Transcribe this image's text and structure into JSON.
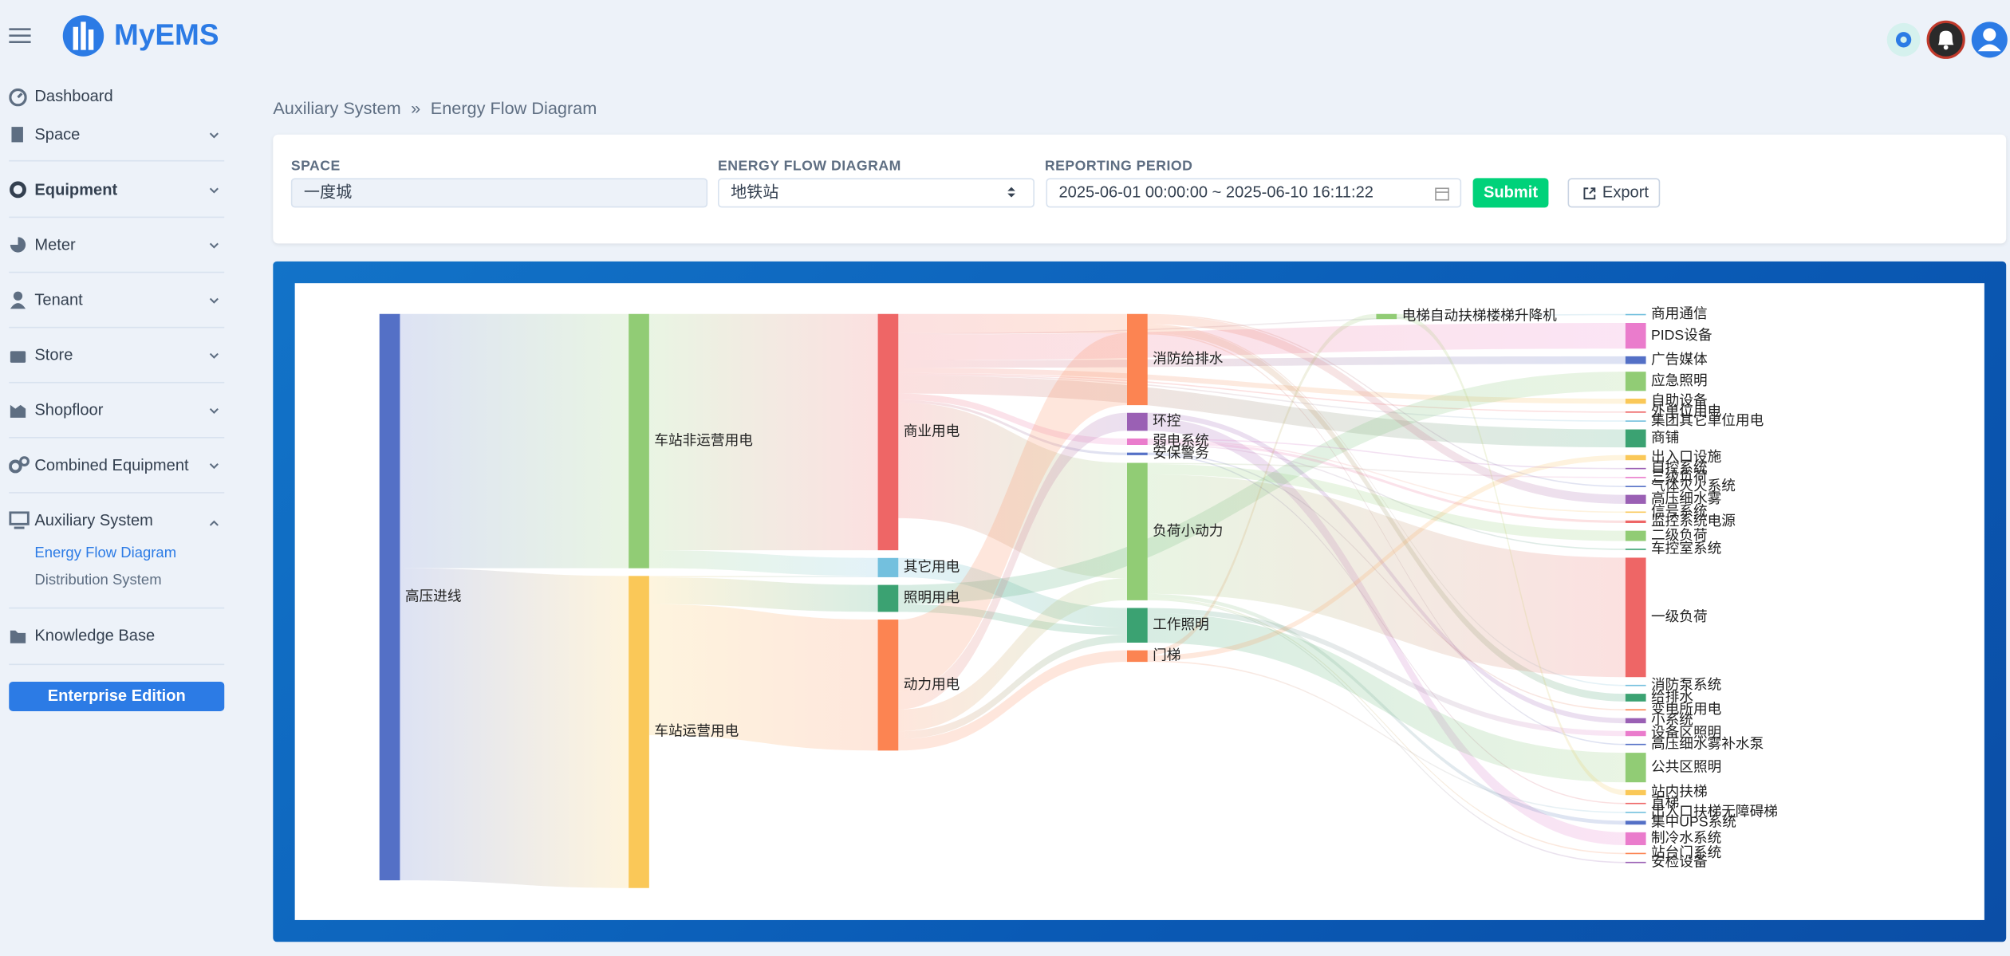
{
  "header": {
    "brand": "MyEMS"
  },
  "sidebar": {
    "items": [
      "Dashboard",
      "Space",
      "Equipment",
      "Meter",
      "Tenant",
      "Store",
      "Shopfloor",
      "Combined Equipment",
      "Auxiliary System",
      "Knowledge Base"
    ],
    "subitems": [
      "Energy Flow Diagram",
      "Distribution System"
    ],
    "edition": "Enterprise Edition"
  },
  "breadcrumb": {
    "parent": "Auxiliary System",
    "separator": "»",
    "current": "Energy Flow Diagram"
  },
  "form": {
    "space_label": "SPACE",
    "space_value": "一度城",
    "diagram_label": "ENERGY FLOW DIAGRAM",
    "diagram_value": "地铁站",
    "period_label": "REPORTING PERIOD",
    "period_value": "2025-06-01 00:00:00 ~ 2025-06-10 16:11:22",
    "submit": "Submit",
    "export": "Export"
  },
  "chart_data": {
    "type": "sankey",
    "nodes": [
      {
        "name": "高压进线",
        "color": "#5470c6"
      },
      {
        "name": "车站非运营用电",
        "color": "#91cc75"
      },
      {
        "name": "车站运营用电",
        "color": "#fac858"
      },
      {
        "name": "商业用电",
        "color": "#ee6666"
      },
      {
        "name": "其它用电",
        "color": "#73c0de"
      },
      {
        "name": "照明用电",
        "color": "#3ba272"
      },
      {
        "name": "动力用电",
        "color": "#fc8452"
      },
      {
        "name": "消防给排水",
        "color": "#fc8452"
      },
      {
        "name": "环控",
        "color": "#9a60b4"
      },
      {
        "name": "弱电系统",
        "color": "#ea7ccc"
      },
      {
        "name": "安保警务",
        "color": "#5470c6"
      },
      {
        "name": "负荷小动力",
        "color": "#91cc75"
      },
      {
        "name": "工作照明",
        "color": "#3ba272"
      },
      {
        "name": "门梯",
        "color": "#fc8452"
      },
      {
        "name": "电梯自动扶梯楼梯升降机",
        "color": "#91cc75"
      },
      {
        "name": "商用通信",
        "color": "#73c0de"
      },
      {
        "name": "PIDS设备",
        "color": "#ea7ccc"
      },
      {
        "name": "广告媒体",
        "color": "#5470c6"
      },
      {
        "name": "应急照明",
        "color": "#91cc75"
      },
      {
        "name": "自助设备",
        "color": "#fac858"
      },
      {
        "name": "外单位用电",
        "color": "#ee6666"
      },
      {
        "name": "集团其它单位用电",
        "color": "#73c0de"
      },
      {
        "name": "商铺",
        "color": "#3ba272"
      },
      {
        "name": "出入口设施",
        "color": "#fac858"
      },
      {
        "name": "自控系统",
        "color": "#9a60b4"
      },
      {
        "name": "三级负荷",
        "color": "#ea7ccc"
      },
      {
        "name": "气体灭火系统",
        "color": "#5470c6"
      },
      {
        "name": "高压细水雾",
        "color": "#9a60b4"
      },
      {
        "name": "信号系统",
        "color": "#fac858"
      },
      {
        "name": "监控系统电源",
        "color": "#ee6666"
      },
      {
        "name": "二级负荷",
        "color": "#91cc75"
      },
      {
        "name": "车控室系统",
        "color": "#3ba272"
      },
      {
        "name": "一级负荷",
        "color": "#ee6666"
      },
      {
        "name": "消防泵系统",
        "color": "#73c0de"
      },
      {
        "name": "给排水",
        "color": "#3ba272"
      },
      {
        "name": "变电所用电",
        "color": "#fc8452"
      },
      {
        "name": "小系统",
        "color": "#9a60b4"
      },
      {
        "name": "设备区照明",
        "color": "#ea7ccc"
      },
      {
        "name": "高压细水雾补水泵",
        "color": "#5470c6"
      },
      {
        "name": "公共区照明",
        "color": "#91cc75"
      },
      {
        "name": "站内扶梯",
        "color": "#fac858"
      },
      {
        "name": "直梯",
        "color": "#ee6666"
      },
      {
        "name": "出入口扶梯无障碍梯",
        "color": "#73c0de"
      },
      {
        "name": "集中UPS系统",
        "color": "#5470c6"
      },
      {
        "name": "制冷水系统",
        "color": "#ea7ccc"
      },
      {
        "name": "站台门系统",
        "color": "#fc8452"
      },
      {
        "name": "安检设备",
        "color": "#9a60b4"
      }
    ],
    "links": [
      {
        "source": "高压进线",
        "target": "车站非运营用电",
        "value": 198
      },
      {
        "source": "高压进线",
        "target": "车站运营用电",
        "value": 243
      },
      {
        "source": "车站非运营用电",
        "target": "商业用电",
        "value": 184
      },
      {
        "source": "车站非运营用电",
        "target": "其它用电",
        "value": 14
      },
      {
        "source": "车站运营用电",
        "target": "其它用电",
        "value": 1
      },
      {
        "source": "车站运营用电",
        "target": "照明用电",
        "value": 21
      },
      {
        "source": "车站运营用电",
        "target": "动力用电",
        "value": 102
      },
      {
        "source": "商业用电",
        "target": "消防给排水",
        "value": 15
      },
      {
        "source": "商业用电",
        "target": "弱电系统",
        "value": 5
      },
      {
        "source": "商业用电",
        "target": "安保警务",
        "value": 2
      },
      {
        "source": "商业用电",
        "target": "负荷小动力",
        "value": 90
      },
      {
        "source": "商业用电",
        "target": "商用通信",
        "value": 1
      },
      {
        "source": "商业用电",
        "target": "PIDS设备",
        "value": 20
      },
      {
        "source": "商业用电",
        "target": "广告媒体",
        "value": 6
      },
      {
        "source": "商业用电",
        "target": "自助设备",
        "value": 4
      },
      {
        "source": "商业用电",
        "target": "外单位用电",
        "value": 1
      },
      {
        "source": "商业用电",
        "target": "集团其它单位用电",
        "value": 1
      },
      {
        "source": "商业用电",
        "target": "商铺",
        "value": 14
      },
      {
        "source": "其它用电",
        "target": "工作照明",
        "value": 15
      },
      {
        "source": "照明用电",
        "target": "应急照明",
        "value": 15
      },
      {
        "source": "照明用电",
        "target": "工作照明",
        "value": 6
      },
      {
        "source": "动力用电",
        "target": "消防给排水",
        "value": 56
      },
      {
        "source": "动力用电",
        "target": "环控",
        "value": 14
      },
      {
        "source": "动力用电",
        "target": "负荷小动力",
        "value": 17
      },
      {
        "source": "动力用电",
        "target": "门梯",
        "value": 9
      },
      {
        "source": "动力用电",
        "target": "工作照明",
        "value": 6
      },
      {
        "source": "消防给排水",
        "target": "气体灭火系统",
        "value": 1
      },
      {
        "source": "消防给排水",
        "target": "高压细水雾",
        "value": 7
      },
      {
        "source": "消防给排水",
        "target": "消防泵系统",
        "value": 1
      },
      {
        "source": "消防给排水",
        "target": "给排水",
        "value": 6
      },
      {
        "source": "消防给排水",
        "target": "高压细水雾补水泵",
        "value": 1
      },
      {
        "source": "环控",
        "target": "小系统",
        "value": 4
      },
      {
        "source": "环控",
        "target": "制冷水系统",
        "value": 10
      },
      {
        "source": "弱电系统",
        "target": "自控系统",
        "value": 1
      },
      {
        "source": "弱电系统",
        "target": "信号系统",
        "value": 1
      },
      {
        "source": "弱电系统",
        "target": "监控系统电源",
        "value": 2
      },
      {
        "source": "弱电系统",
        "target": "车控室系统",
        "value": 1
      },
      {
        "source": "安保警务",
        "target": "变电所用电",
        "value": 1
      },
      {
        "source": "安保警务",
        "target": "直梯",
        "value": 1
      },
      {
        "source": "负荷小动力",
        "target": "三级负荷",
        "value": 1
      },
      {
        "source": "负荷小动力",
        "target": "二级负荷",
        "value": 8
      },
      {
        "source": "负荷小动力",
        "target": "一级负荷",
        "value": 93
      },
      {
        "source": "负荷小动力",
        "target": "集中UPS系统",
        "value": 3
      },
      {
        "source": "负荷小动力",
        "target": "站台门系统",
        "value": 1
      },
      {
        "source": "负荷小动力",
        "target": "安检设备",
        "value": 1
      },
      {
        "source": "工作照明",
        "target": "设备区照明",
        "value": 4
      },
      {
        "source": "工作照明",
        "target": "公共区照明",
        "value": 23
      },
      {
        "source": "门梯",
        "target": "电梯自动扶梯楼梯升降机",
        "value": 4
      },
      {
        "source": "门梯",
        "target": "出入口设施",
        "value": 4
      },
      {
        "source": "门梯",
        "target": "出入口扶梯无障碍梯",
        "value": 1
      },
      {
        "source": "电梯自动扶梯楼梯升降机",
        "target": "站内扶梯",
        "value": 4
      }
    ]
  }
}
